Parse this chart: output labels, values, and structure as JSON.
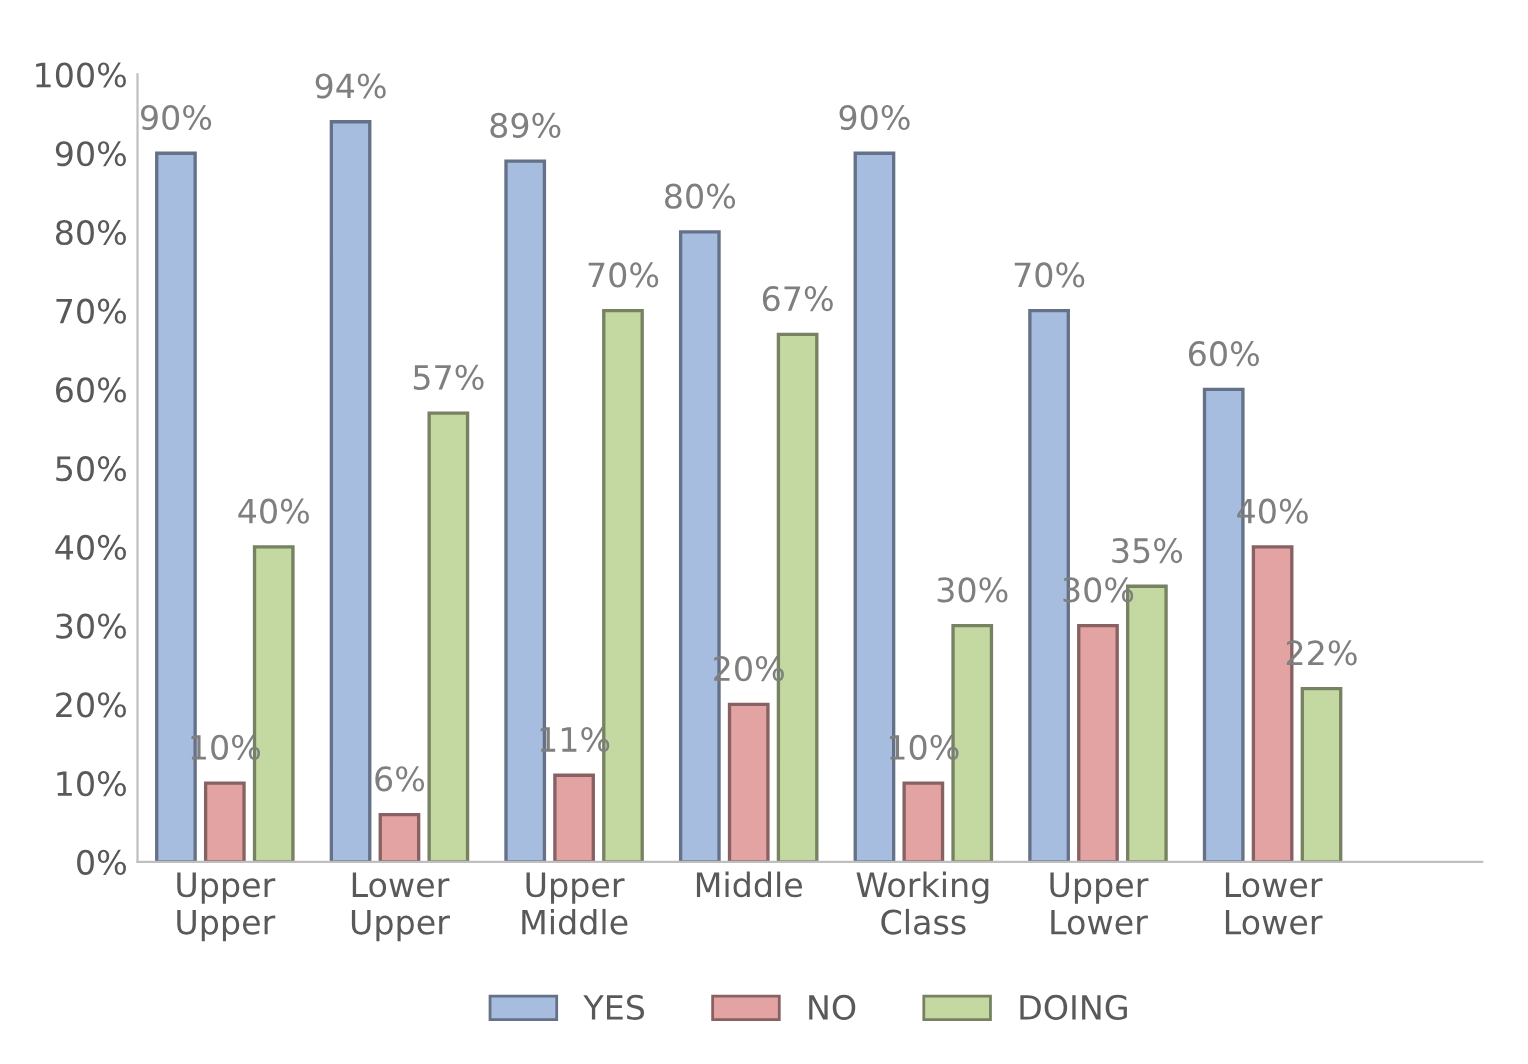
{
  "chart_data": {
    "type": "bar",
    "categories": [
      "Upper\nUpper",
      "Lower\nUpper",
      "Upper\nMiddle",
      "Middle",
      "Working\nClass",
      "Upper\nLower",
      "Lower\nLower"
    ],
    "series": [
      {
        "name": "YES",
        "color": "#a7bde0",
        "values": [
          90,
          94,
          89,
          80,
          90,
          70,
          60
        ],
        "value_labels": [
          "90%",
          "94%",
          "89%",
          "80%",
          "90%",
          "70%",
          "60%"
        ]
      },
      {
        "name": "NO",
        "color": "#e3a3a3",
        "values": [
          10,
          6,
          11,
          20,
          10,
          30,
          40
        ],
        "value_labels": [
          "10%",
          "6%",
          "11%",
          "20%",
          "10%",
          "30%",
          "40%"
        ]
      },
      {
        "name": "DOING",
        "color": "#c4d9a2",
        "values": [
          40,
          57,
          70,
          67,
          30,
          35,
          22
        ],
        "value_labels": [
          "40%",
          "57%",
          "70%",
          "67%",
          "30%",
          "35%",
          "22%"
        ]
      }
    ],
    "ylim": [
      0,
      100
    ],
    "yticks": [
      {
        "value": 0,
        "label": "0%"
      },
      {
        "value": 10,
        "label": "10%"
      },
      {
        "value": 20,
        "label": "20%"
      },
      {
        "value": 30,
        "label": "30%"
      },
      {
        "value": 40,
        "label": "40%"
      },
      {
        "value": 50,
        "label": "50%"
      },
      {
        "value": 60,
        "label": "60%"
      },
      {
        "value": 70,
        "label": "70%"
      },
      {
        "value": 80,
        "label": "80%"
      },
      {
        "value": 90,
        "label": "90%"
      },
      {
        "value": 100,
        "label": "100%"
      }
    ],
    "grid": false,
    "legend": "bottom"
  }
}
